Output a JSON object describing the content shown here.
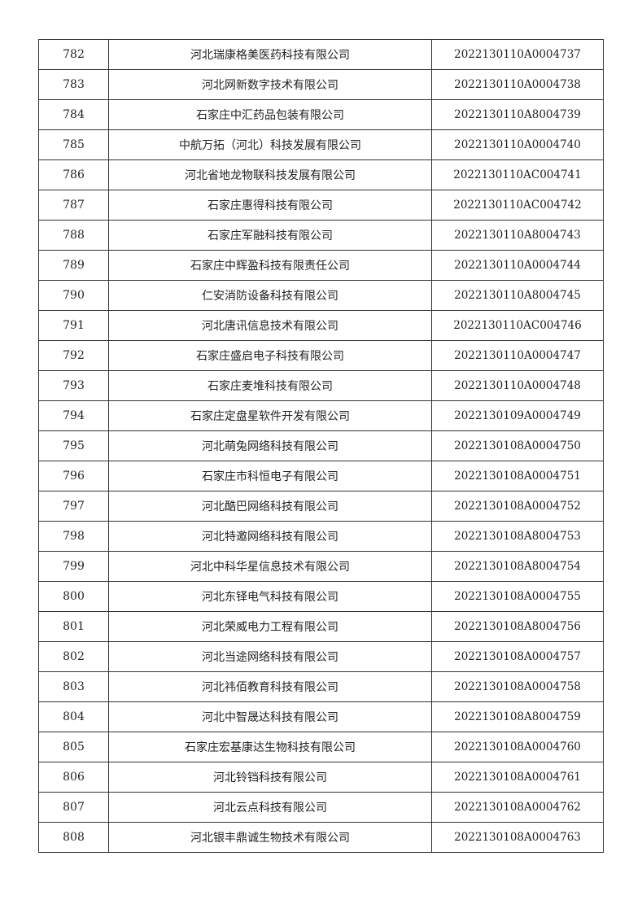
{
  "rows": [
    {
      "no": "782",
      "name": "河北瑞康格美医药科技有限公司",
      "code": "2022130110A0004737"
    },
    {
      "no": "783",
      "name": "河北网新数字技术有限公司",
      "code": "2022130110A0004738"
    },
    {
      "no": "784",
      "name": "石家庄中汇药品包装有限公司",
      "code": "2022130110A8004739"
    },
    {
      "no": "785",
      "name": "中航万拓（河北）科技发展有限公司",
      "code": "2022130110A0004740"
    },
    {
      "no": "786",
      "name": "河北省地龙物联科技发展有限公司",
      "code": "2022130110AC004741"
    },
    {
      "no": "787",
      "name": "石家庄惠得科技有限公司",
      "code": "2022130110AC004742"
    },
    {
      "no": "788",
      "name": "石家庄军融科技有限公司",
      "code": "2022130110A8004743"
    },
    {
      "no": "789",
      "name": "石家庄中辉盈科技有限责任公司",
      "code": "2022130110A0004744"
    },
    {
      "no": "790",
      "name": "仁安消防设备科技有限公司",
      "code": "2022130110A8004745"
    },
    {
      "no": "791",
      "name": "河北唐讯信息技术有限公司",
      "code": "2022130110AC004746"
    },
    {
      "no": "792",
      "name": "石家庄盛启电子科技有限公司",
      "code": "2022130110A0004747"
    },
    {
      "no": "793",
      "name": "石家庄麦堆科技有限公司",
      "code": "2022130110A0004748"
    },
    {
      "no": "794",
      "name": "石家庄定盘星软件开发有限公司",
      "code": "2022130109A0004749"
    },
    {
      "no": "795",
      "name": "河北萌兔网络科技有限公司",
      "code": "2022130108A0004750"
    },
    {
      "no": "796",
      "name": "石家庄市科恒电子有限公司",
      "code": "2022130108A0004751"
    },
    {
      "no": "797",
      "name": "河北酷巴网络科技有限公司",
      "code": "2022130108A0004752"
    },
    {
      "no": "798",
      "name": "河北特邀网络科技有限公司",
      "code": "2022130108A8004753"
    },
    {
      "no": "799",
      "name": "河北中科华星信息技术有限公司",
      "code": "2022130108A8004754"
    },
    {
      "no": "800",
      "name": "河北东铎电气科技有限公司",
      "code": "2022130108A0004755"
    },
    {
      "no": "801",
      "name": "河北荣威电力工程有限公司",
      "code": "2022130108A8004756"
    },
    {
      "no": "802",
      "name": "河北当途网络科技有限公司",
      "code": "2022130108A0004757"
    },
    {
      "no": "803",
      "name": "河北祎佰教育科技有限公司",
      "code": "2022130108A0004758"
    },
    {
      "no": "804",
      "name": "河北中智晟达科技有限公司",
      "code": "2022130108A8004759"
    },
    {
      "no": "805",
      "name": "石家庄宏基康达生物科技有限公司",
      "code": "2022130108A0004760"
    },
    {
      "no": "806",
      "name": "河北铃铛科技有限公司",
      "code": "2022130108A0004761"
    },
    {
      "no": "807",
      "name": "河北云点科技有限公司",
      "code": "2022130108A0004762"
    },
    {
      "no": "808",
      "name": "河北银丰鼎诚生物技术有限公司",
      "code": "2022130108A0004763"
    }
  ]
}
